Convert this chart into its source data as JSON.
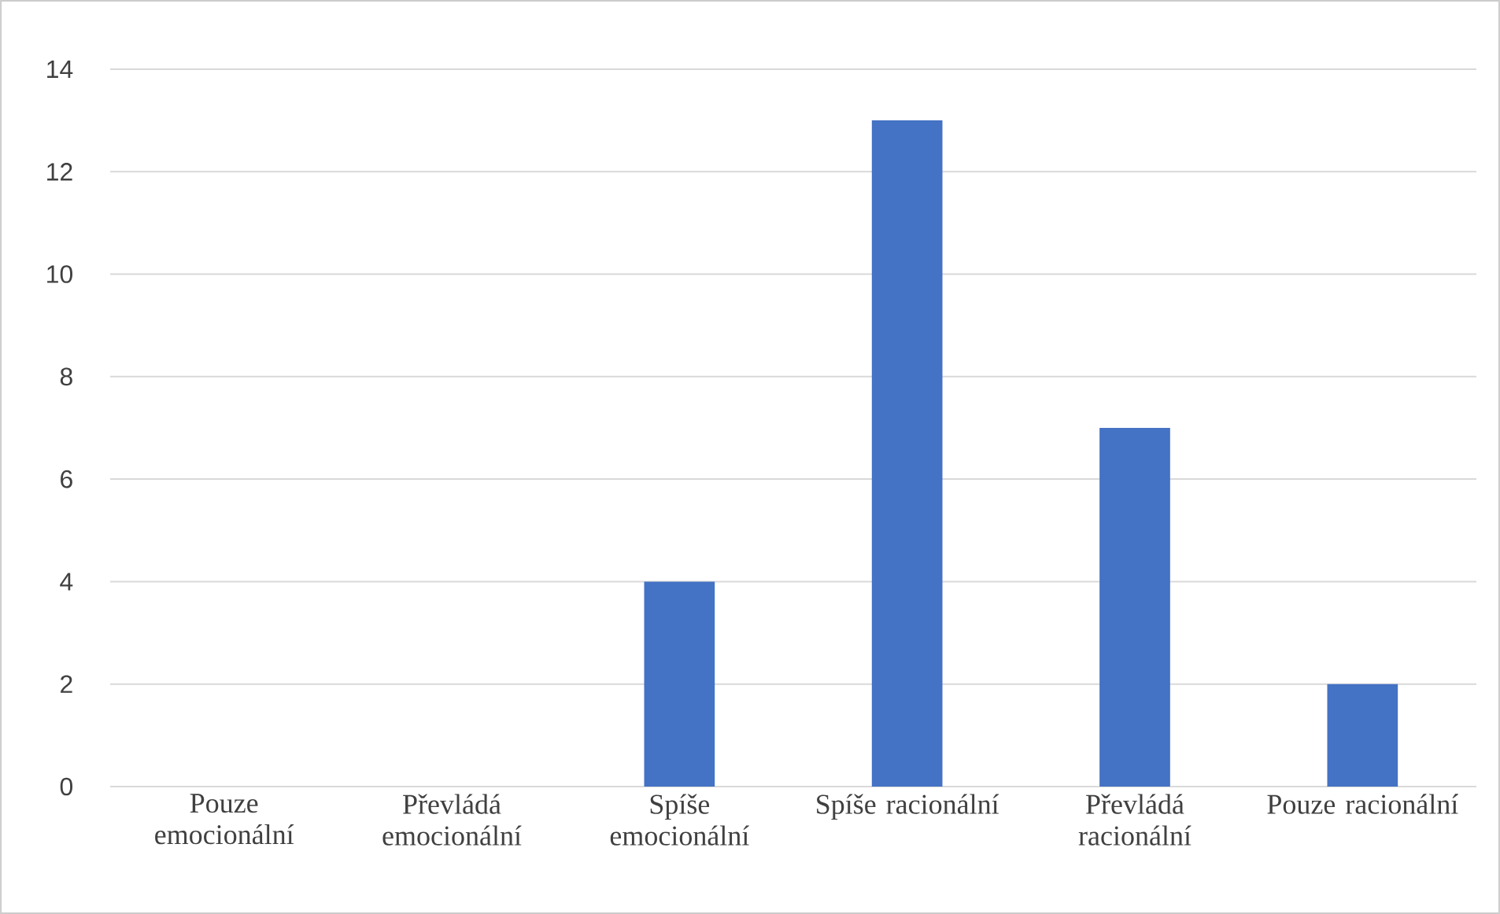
{
  "chart_data": {
    "type": "bar",
    "categories": [
      "Pouze emocionální",
      "Převládá emocionální",
      "Spíše emocionální",
      "Spíše racionální",
      "Převládá racionální",
      "Pouze racionální"
    ],
    "values": [
      0,
      0,
      4,
      13,
      7,
      2
    ],
    "color": "#4472c4",
    "ylim": [
      0,
      14
    ],
    "yticks": [
      0,
      2,
      4,
      6,
      8,
      10,
      12,
      14
    ],
    "grid": "y"
  }
}
